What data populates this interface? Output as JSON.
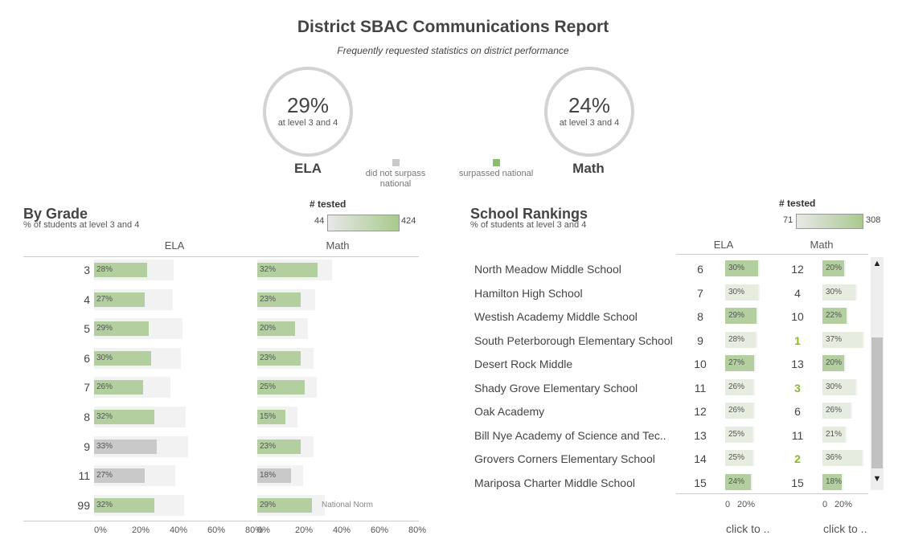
{
  "header": {
    "title": "District SBAC Communications Report",
    "subtitle": "Frequently requested statistics on district performance"
  },
  "kpis": {
    "ela": {
      "value": "29%",
      "sub": "at level 3 and 4",
      "label": "ELA"
    },
    "math": {
      "value": "24%",
      "sub": "at level 3 and 4",
      "label": "Math"
    }
  },
  "legend": {
    "not_surpass": "did not surpass national",
    "surpassed": "surpassed national",
    "colors": {
      "not_surpass": "#c9c9c9",
      "surpassed": "#8bbd6c"
    }
  },
  "by_grade": {
    "title": "By Grade",
    "subtitle": "% of students at level 3 and 4",
    "tested_title": "# tested",
    "tested_min": "44",
    "tested_max": "424",
    "col_ela": "ELA",
    "col_math": "Math",
    "national_norm": "National Norm",
    "axis_ticks": [
      "0%",
      "20%",
      "40%",
      "60%",
      "80%"
    ],
    "rows": [
      {
        "grade": "3",
        "ela": "28%",
        "ela_v": 28,
        "ela_c": "green",
        "ela_t": 0.55,
        "math": "32%",
        "math_v": 32,
        "math_c": "green",
        "math_t": 0.6
      },
      {
        "grade": "4",
        "ela": "27%",
        "ela_v": 27,
        "ela_c": "green",
        "ela_t": 0.57,
        "math": "23%",
        "math_v": 23,
        "math_c": "green",
        "math_t": 0.61
      },
      {
        "grade": "5",
        "ela": "29%",
        "ela_v": 29,
        "ela_c": "green",
        "ela_t": 0.7,
        "math": "20%",
        "math_v": 20,
        "math_c": "green",
        "math_t": 0.52
      },
      {
        "grade": "6",
        "ela": "30%",
        "ela_v": 30,
        "ela_c": "green",
        "ela_t": 0.62,
        "math": "23%",
        "math_v": 23,
        "math_c": "green",
        "math_t": 0.52
      },
      {
        "grade": "7",
        "ela": "26%",
        "ela_v": 26,
        "ela_c": "green",
        "ela_t": 0.56,
        "math": "25%",
        "math_v": 25,
        "math_c": "green",
        "math_t": 0.52
      },
      {
        "grade": "8",
        "ela": "32%",
        "ela_v": 32,
        "ela_c": "green",
        "ela_t": 0.65,
        "math": "15%",
        "math_v": 15,
        "math_c": "green",
        "math_t": 0.5
      },
      {
        "grade": "9",
        "ela": "33%",
        "ela_v": 33,
        "ela_c": "gray",
        "ela_t": 0.65,
        "math": "23%",
        "math_v": 23,
        "math_c": "green",
        "math_t": 0.52
      },
      {
        "grade": "11",
        "ela": "27%",
        "ela_v": 27,
        "ela_c": "gray",
        "ela_t": 0.62,
        "math": "18%",
        "math_v": 18,
        "math_c": "gray",
        "math_t": 0.5
      },
      {
        "grade": "99",
        "ela": "32%",
        "ela_v": 32,
        "ela_c": "green",
        "ela_t": 0.62,
        "math": "29%",
        "math_v": 29,
        "math_c": "green",
        "math_t": 0.52
      }
    ]
  },
  "school_rankings": {
    "title": "School Rankings",
    "subtitle": "% of students at level 3 and 4",
    "tested_title": "# tested",
    "tested_min": "71",
    "tested_max": "308",
    "col_ela": "ELA",
    "col_math": "Math",
    "axis_ticks": [
      "0",
      "20%"
    ],
    "click_ela": "click to ..",
    "click_math": "click to ..",
    "rows": [
      {
        "name": "North Meadow Middle School",
        "ela_rank": "6",
        "ela": "30%",
        "ela_v": 30,
        "ela_c": "g",
        "math_rank": "12",
        "math": "20%",
        "math_v": 20,
        "math_c": "g",
        "math_top": false
      },
      {
        "name": "Hamilton High School",
        "ela_rank": "7",
        "ela": "30%",
        "ela_v": 30,
        "ela_c": "l",
        "math_rank": "4",
        "math": "30%",
        "math_v": 30,
        "math_c": "l",
        "math_top": false
      },
      {
        "name": "Westish Academy Middle School",
        "ela_rank": "8",
        "ela": "29%",
        "ela_v": 29,
        "ela_c": "g",
        "math_rank": "10",
        "math": "22%",
        "math_v": 22,
        "math_c": "g",
        "math_top": false
      },
      {
        "name": "South Peterborough Elementary School",
        "ela_rank": "9",
        "ela": "28%",
        "ela_v": 28,
        "ela_c": "l",
        "math_rank": "1",
        "math": "37%",
        "math_v": 37,
        "math_c": "l",
        "math_top": true
      },
      {
        "name": "Desert Rock Middle",
        "ela_rank": "10",
        "ela": "27%",
        "ela_v": 27,
        "ela_c": "g",
        "math_rank": "13",
        "math": "20%",
        "math_v": 20,
        "math_c": "g",
        "math_top": false
      },
      {
        "name": "Shady Grove Elementary School",
        "ela_rank": "11",
        "ela": "26%",
        "ela_v": 26,
        "ela_c": "l",
        "math_rank": "3",
        "math": "30%",
        "math_v": 30,
        "math_c": "l",
        "math_top": true
      },
      {
        "name": "Oak Academy",
        "ela_rank": "12",
        "ela": "26%",
        "ela_v": 26,
        "ela_c": "l",
        "math_rank": "6",
        "math": "26%",
        "math_v": 26,
        "math_c": "l",
        "math_top": false
      },
      {
        "name": "Bill Nye Academy of Science and Tec..",
        "ela_rank": "13",
        "ela": "25%",
        "ela_v": 25,
        "ela_c": "l",
        "math_rank": "11",
        "math": "21%",
        "math_v": 21,
        "math_c": "l",
        "math_top": false
      },
      {
        "name": "Grovers Corners Elementary School",
        "ela_rank": "14",
        "ela": "25%",
        "ela_v": 25,
        "ela_c": "l",
        "math_rank": "2",
        "math": "36%",
        "math_v": 36,
        "math_c": "l",
        "math_top": true
      },
      {
        "name": "Mariposa Charter Middle School",
        "ela_rank": "15",
        "ela": "24%",
        "ela_v": 24,
        "ela_c": "g",
        "math_rank": "15",
        "math": "18%",
        "math_v": 18,
        "math_c": "g",
        "math_top": false
      }
    ]
  }
}
